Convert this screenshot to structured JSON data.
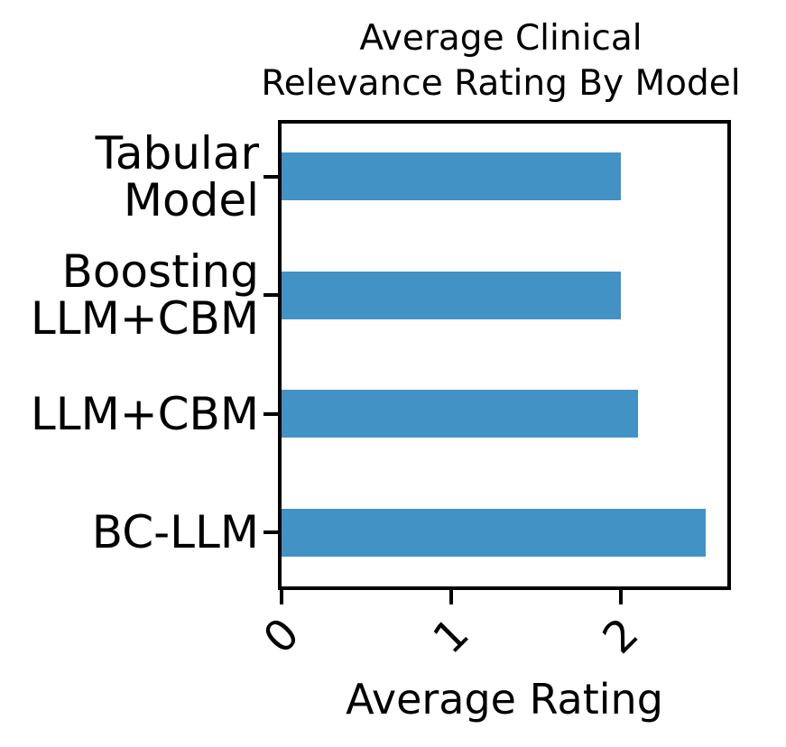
{
  "figure": {
    "title_lines": [
      "Average Clinical",
      "Relevance Rating By Model"
    ],
    "xlabel": "Average Rating"
  },
  "chart_data": {
    "type": "bar",
    "orientation": "horizontal",
    "title": "Average Clinical Relevance Rating By Model",
    "categories": [
      "Tabular Model",
      "Boosting LLM+CBM",
      "LLM+CBM",
      "BC-LLM"
    ],
    "category_display_lines": [
      [
        "Tabular",
        "Model"
      ],
      [
        "Boosting",
        "LLM+CBM"
      ],
      [
        "LLM+CBM"
      ],
      [
        "BC-LLM"
      ]
    ],
    "values": [
      2.0,
      2.0,
      2.1,
      2.5
    ],
    "xlabel": "Average Rating",
    "ylabel": "",
    "xticks": [
      0,
      1,
      2
    ],
    "xlim": [
      0,
      2.625
    ],
    "xtick_rotation": 45,
    "bar_color": "#4292c6",
    "axis_color": "#000000",
    "grid": false,
    "legend": null
  }
}
